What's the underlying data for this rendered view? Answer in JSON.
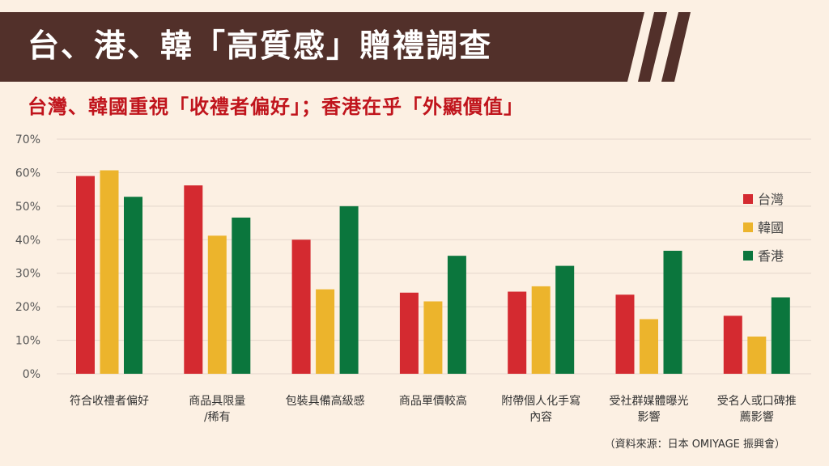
{
  "header": {
    "title": "台、港、韓「高質感」贈禮調查",
    "subtitle": "台灣、韓國重視「收禮者偏好」；香港在乎「外顯價值」"
  },
  "source": "（資料來源：日本 OMIYAGE 振興會）",
  "colors": {
    "banner": "#52302a",
    "background": "#fcf0e3",
    "subtitle": "#c0141c"
  },
  "chart_data": {
    "type": "bar",
    "title": "台、港、韓「高質感」贈禮調查",
    "categories": [
      [
        "符合收禮者偏好"
      ],
      [
        "商品具限量",
        "/稀有"
      ],
      [
        "包裝具備高級感"
      ],
      [
        "商品單價較高"
      ],
      [
        "附帶個人化手寫",
        "內容"
      ],
      [
        "受社群媒體曝光",
        "影響"
      ],
      [
        "受名人或口碑推",
        "薦影響"
      ]
    ],
    "series": [
      {
        "name": "台灣",
        "color": "#d42a30",
        "values": [
          59.0,
          56.2,
          40.0,
          24.2,
          24.5,
          23.6,
          17.3
        ]
      },
      {
        "name": "韓國",
        "color": "#ecb42c",
        "values": [
          60.7,
          41.2,
          25.2,
          21.6,
          26.1,
          16.3,
          11.1
        ]
      },
      {
        "name": "香港",
        "color": "#0b763d",
        "values": [
          52.8,
          46.6,
          50.0,
          35.2,
          32.2,
          36.7,
          22.8
        ]
      }
    ],
    "yticks": [
      "0%",
      "10%",
      "20%",
      "30%",
      "40%",
      "50%",
      "60%",
      "70%"
    ],
    "ylim": [
      0,
      70
    ],
    "xlabel": "",
    "ylabel": "",
    "grid": true,
    "legend": "right"
  }
}
